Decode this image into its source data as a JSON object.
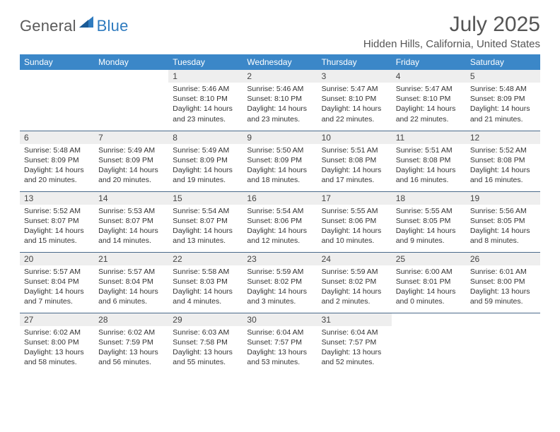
{
  "logo": {
    "general": "General",
    "blue": "Blue"
  },
  "header": {
    "title": "July 2025",
    "location": "Hidden Hills, California, United States"
  },
  "colors": {
    "header_bg": "#3b87c8",
    "header_fg": "#ffffff",
    "daynum_bg": "#eeeeee",
    "row_border": "#4a6a8a"
  },
  "weekdays": [
    "Sunday",
    "Monday",
    "Tuesday",
    "Wednesday",
    "Thursday",
    "Friday",
    "Saturday"
  ],
  "weeks": [
    [
      null,
      null,
      {
        "n": "1",
        "sr": "5:46 AM",
        "ss": "8:10 PM",
        "dl": "14 hours and 23 minutes."
      },
      {
        "n": "2",
        "sr": "5:46 AM",
        "ss": "8:10 PM",
        "dl": "14 hours and 23 minutes."
      },
      {
        "n": "3",
        "sr": "5:47 AM",
        "ss": "8:10 PM",
        "dl": "14 hours and 22 minutes."
      },
      {
        "n": "4",
        "sr": "5:47 AM",
        "ss": "8:10 PM",
        "dl": "14 hours and 22 minutes."
      },
      {
        "n": "5",
        "sr": "5:48 AM",
        "ss": "8:09 PM",
        "dl": "14 hours and 21 minutes."
      }
    ],
    [
      {
        "n": "6",
        "sr": "5:48 AM",
        "ss": "8:09 PM",
        "dl": "14 hours and 20 minutes."
      },
      {
        "n": "7",
        "sr": "5:49 AM",
        "ss": "8:09 PM",
        "dl": "14 hours and 20 minutes."
      },
      {
        "n": "8",
        "sr": "5:49 AM",
        "ss": "8:09 PM",
        "dl": "14 hours and 19 minutes."
      },
      {
        "n": "9",
        "sr": "5:50 AM",
        "ss": "8:09 PM",
        "dl": "14 hours and 18 minutes."
      },
      {
        "n": "10",
        "sr": "5:51 AM",
        "ss": "8:08 PM",
        "dl": "14 hours and 17 minutes."
      },
      {
        "n": "11",
        "sr": "5:51 AM",
        "ss": "8:08 PM",
        "dl": "14 hours and 16 minutes."
      },
      {
        "n": "12",
        "sr": "5:52 AM",
        "ss": "8:08 PM",
        "dl": "14 hours and 16 minutes."
      }
    ],
    [
      {
        "n": "13",
        "sr": "5:52 AM",
        "ss": "8:07 PM",
        "dl": "14 hours and 15 minutes."
      },
      {
        "n": "14",
        "sr": "5:53 AM",
        "ss": "8:07 PM",
        "dl": "14 hours and 14 minutes."
      },
      {
        "n": "15",
        "sr": "5:54 AM",
        "ss": "8:07 PM",
        "dl": "14 hours and 13 minutes."
      },
      {
        "n": "16",
        "sr": "5:54 AM",
        "ss": "8:06 PM",
        "dl": "14 hours and 12 minutes."
      },
      {
        "n": "17",
        "sr": "5:55 AM",
        "ss": "8:06 PM",
        "dl": "14 hours and 10 minutes."
      },
      {
        "n": "18",
        "sr": "5:55 AM",
        "ss": "8:05 PM",
        "dl": "14 hours and 9 minutes."
      },
      {
        "n": "19",
        "sr": "5:56 AM",
        "ss": "8:05 PM",
        "dl": "14 hours and 8 minutes."
      }
    ],
    [
      {
        "n": "20",
        "sr": "5:57 AM",
        "ss": "8:04 PM",
        "dl": "14 hours and 7 minutes."
      },
      {
        "n": "21",
        "sr": "5:57 AM",
        "ss": "8:04 PM",
        "dl": "14 hours and 6 minutes."
      },
      {
        "n": "22",
        "sr": "5:58 AM",
        "ss": "8:03 PM",
        "dl": "14 hours and 4 minutes."
      },
      {
        "n": "23",
        "sr": "5:59 AM",
        "ss": "8:02 PM",
        "dl": "14 hours and 3 minutes."
      },
      {
        "n": "24",
        "sr": "5:59 AM",
        "ss": "8:02 PM",
        "dl": "14 hours and 2 minutes."
      },
      {
        "n": "25",
        "sr": "6:00 AM",
        "ss": "8:01 PM",
        "dl": "14 hours and 0 minutes."
      },
      {
        "n": "26",
        "sr": "6:01 AM",
        "ss": "8:00 PM",
        "dl": "13 hours and 59 minutes."
      }
    ],
    [
      {
        "n": "27",
        "sr": "6:02 AM",
        "ss": "8:00 PM",
        "dl": "13 hours and 58 minutes."
      },
      {
        "n": "28",
        "sr": "6:02 AM",
        "ss": "7:59 PM",
        "dl": "13 hours and 56 minutes."
      },
      {
        "n": "29",
        "sr": "6:03 AM",
        "ss": "7:58 PM",
        "dl": "13 hours and 55 minutes."
      },
      {
        "n": "30",
        "sr": "6:04 AM",
        "ss": "7:57 PM",
        "dl": "13 hours and 53 minutes."
      },
      {
        "n": "31",
        "sr": "6:04 AM",
        "ss": "7:57 PM",
        "dl": "13 hours and 52 minutes."
      },
      null,
      null
    ]
  ],
  "labels": {
    "sunrise": "Sunrise: ",
    "sunset": "Sunset: ",
    "daylight": "Daylight: "
  }
}
